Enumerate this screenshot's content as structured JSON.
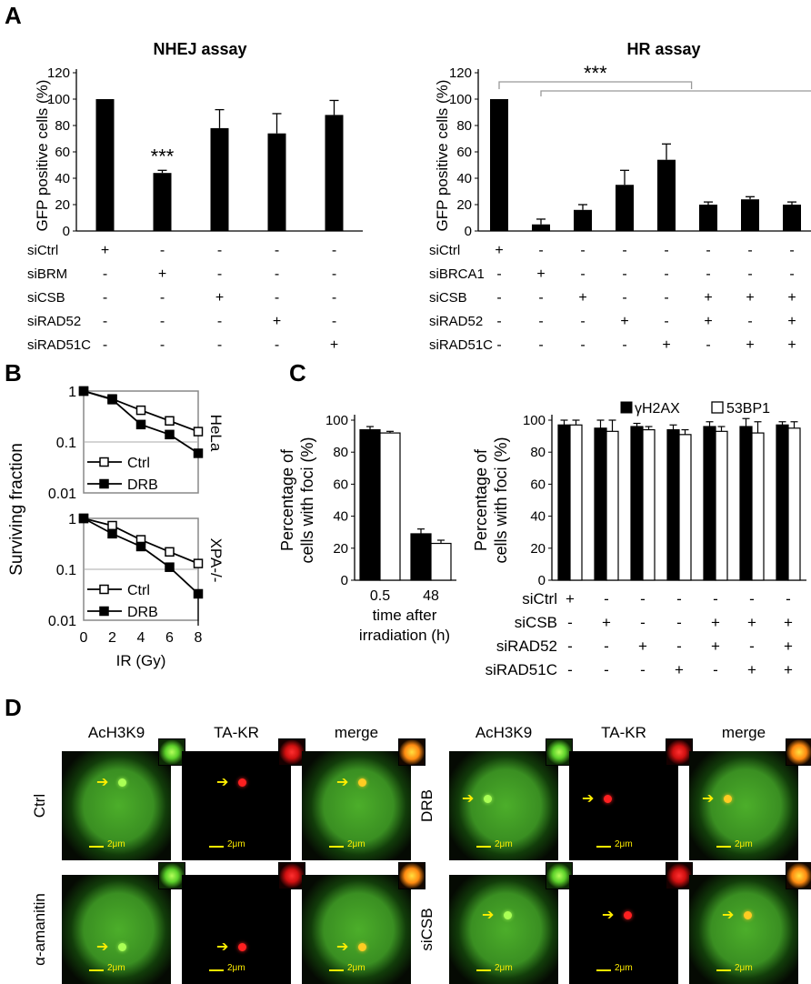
{
  "panels": {
    "A": "A",
    "B": "B",
    "C": "C",
    "D": "D"
  },
  "panelA_left": {
    "title": "NHEJ assay",
    "ylabel": "GFP positive cells (%)",
    "yticks": [
      "0",
      "20",
      "40",
      "60",
      "80",
      "100",
      "120"
    ],
    "significance": "***",
    "rows": [
      {
        "label": "siCtrl",
        "marks": [
          "+",
          "-",
          "-",
          "-",
          "-"
        ]
      },
      {
        "label": "siBRM",
        "marks": [
          "-",
          "+",
          "-",
          "-",
          "-"
        ]
      },
      {
        "label": "siCSB",
        "marks": [
          "-",
          "-",
          "+",
          "-",
          "-"
        ]
      },
      {
        "label": "siRAD52",
        "marks": [
          "-",
          "-",
          "-",
          "+",
          "-"
        ]
      },
      {
        "label": "siRAD51C",
        "marks": [
          "-",
          "-",
          "-",
          "-",
          "+"
        ]
      }
    ]
  },
  "panelA_right": {
    "title": "HR assay",
    "ylabel": "GFP positive cells (%)",
    "yticks": [
      "0",
      "20",
      "40",
      "60",
      "80",
      "100",
      "120"
    ],
    "significance": "***",
    "rows": [
      {
        "label": "siCtrl",
        "marks": [
          "+",
          "-",
          "-",
          "-",
          "-",
          "-",
          "-",
          "-"
        ]
      },
      {
        "label": "siBRCA1",
        "marks": [
          "-",
          "+",
          "-",
          "-",
          "-",
          "-",
          "-",
          "-"
        ]
      },
      {
        "label": "siCSB",
        "marks": [
          "-",
          "-",
          "+",
          "-",
          "-",
          "+",
          "+",
          "+"
        ]
      },
      {
        "label": "siRAD52",
        "marks": [
          "-",
          "-",
          "-",
          "+",
          "-",
          "+",
          "-",
          "+"
        ]
      },
      {
        "label": "siRAD51C",
        "marks": [
          "-",
          "-",
          "-",
          "-",
          "+",
          "-",
          "+",
          "+"
        ]
      }
    ]
  },
  "panelB": {
    "ylabel": "Surviving fraction",
    "xlabel": "IR (Gy)",
    "yticks": [
      "1",
      "0.1",
      "0.01"
    ],
    "xticks": [
      "0",
      "2",
      "4",
      "6",
      "8"
    ],
    "top_cell": "HeLa",
    "bottom_cell": "XPA-/-",
    "legend": [
      "Ctrl",
      "DRB"
    ]
  },
  "panelC_left": {
    "ylabel": [
      "Percentage of",
      "cells with foci (%)"
    ],
    "yticks": [
      "0",
      "20",
      "40",
      "60",
      "80",
      "100"
    ],
    "xticks": [
      "0.5",
      "48"
    ],
    "xlabel": [
      "time after",
      "irradiation (h)"
    ]
  },
  "panelC_right": {
    "ylabel": [
      "Percentage of",
      "cells with foci (%)"
    ],
    "yticks": [
      "0",
      "20",
      "40",
      "60",
      "80",
      "100"
    ],
    "legend": [
      "γH2AX",
      "53BP1"
    ],
    "rows": [
      {
        "label": "siCtrl",
        "marks": [
          "+",
          "-",
          "-",
          "-",
          "-",
          "-",
          "-"
        ]
      },
      {
        "label": "siCSB",
        "marks": [
          "-",
          "+",
          "-",
          "-",
          "+",
          "+",
          "+"
        ]
      },
      {
        "label": "siRAD52",
        "marks": [
          "-",
          "-",
          "+",
          "-",
          "+",
          "-",
          "+"
        ]
      },
      {
        "label": "siRAD51C",
        "marks": [
          "-",
          "-",
          "-",
          "+",
          "-",
          "+",
          "+"
        ]
      }
    ]
  },
  "panelD": {
    "columns_left": [
      "AcH3K9",
      "TA-KR",
      "merge"
    ],
    "columns_right": [
      "AcH3K9",
      "TA-KR",
      "merge"
    ],
    "rows_left": [
      "Ctrl",
      "α-amanitin"
    ],
    "rows_right": [
      "DRB",
      "siCSB"
    ],
    "scale_bar": "2μm"
  },
  "chart_data": [
    {
      "type": "bar",
      "title": "NHEJ assay",
      "ylabel": "GFP positive cells (%)",
      "ylim": [
        0,
        120
      ],
      "categories": [
        "siCtrl",
        "siBRM",
        "siCSB",
        "siRAD52",
        "siRAD51C"
      ],
      "values": [
        100,
        44,
        78,
        74,
        88
      ],
      "errors": [
        0,
        2,
        14,
        15,
        11
      ]
    },
    {
      "type": "bar",
      "title": "HR assay",
      "ylabel": "GFP positive cells (%)",
      "ylim": [
        0,
        120
      ],
      "categories": [
        "siCtrl",
        "siBRCA1",
        "siCSB",
        "siRAD52",
        "siRAD51C",
        "siCSB+siRAD52",
        "siCSB+siRAD51C",
        "siCSB+siRAD52+siRAD51C"
      ],
      "values": [
        100,
        5,
        16,
        35,
        54,
        20,
        24,
        20
      ],
      "errors": [
        0,
        4,
        4,
        11,
        12,
        2,
        2,
        2
      ]
    },
    {
      "type": "line",
      "title": "HeLa",
      "ylabel": "Surviving fraction",
      "xlabel": "IR (Gy)",
      "yscale": "log",
      "ylim": [
        0.01,
        1
      ],
      "x": [
        0,
        2,
        4,
        6,
        8
      ],
      "series": [
        {
          "name": "Ctrl",
          "values": [
            1,
            0.7,
            0.42,
            0.26,
            0.16
          ]
        },
        {
          "name": "DRB",
          "values": [
            1,
            0.68,
            0.22,
            0.14,
            0.06
          ]
        }
      ]
    },
    {
      "type": "line",
      "title": "XPA-/-",
      "ylabel": "Surviving fraction",
      "xlabel": "IR (Gy)",
      "yscale": "log",
      "ylim": [
        0.01,
        1
      ],
      "x": [
        0,
        2,
        4,
        6,
        8
      ],
      "series": [
        {
          "name": "Ctrl",
          "values": [
            1,
            0.72,
            0.38,
            0.22,
            0.13
          ]
        },
        {
          "name": "DRB",
          "values": [
            1,
            0.5,
            0.28,
            0.11,
            0.033
          ]
        }
      ]
    },
    {
      "type": "bar",
      "ylabel": "Percentage of cells with foci (%)",
      "xlabel": "time after irradiation (h)",
      "ylim": [
        0,
        100
      ],
      "categories": [
        "0.5",
        "48"
      ],
      "series": [
        {
          "name": "γH2AX",
          "values": [
            94,
            29
          ],
          "errors": [
            2,
            3
          ]
        },
        {
          "name": "53BP1",
          "values": [
            92,
            23
          ],
          "errors": [
            1,
            2
          ]
        }
      ]
    },
    {
      "type": "bar",
      "ylabel": "Percentage of cells with foci (%)",
      "ylim": [
        0,
        100
      ],
      "categories": [
        "siCtrl",
        "siCSB",
        "siRAD52",
        "siRAD51C",
        "siCSB+siRAD52",
        "siCSB+siRAD51C",
        "siCSB+siRAD52+siRAD51C"
      ],
      "series": [
        {
          "name": "γH2AX",
          "values": [
            97,
            95,
            96,
            94,
            96,
            96,
            97
          ],
          "errors": [
            3,
            5,
            2,
            3,
            3,
            5,
            2
          ]
        },
        {
          "name": "53BP1",
          "values": [
            97,
            93,
            94,
            91,
            93,
            92,
            95
          ],
          "errors": [
            3,
            7,
            2,
            3,
            3,
            7,
            4
          ]
        }
      ]
    }
  ]
}
